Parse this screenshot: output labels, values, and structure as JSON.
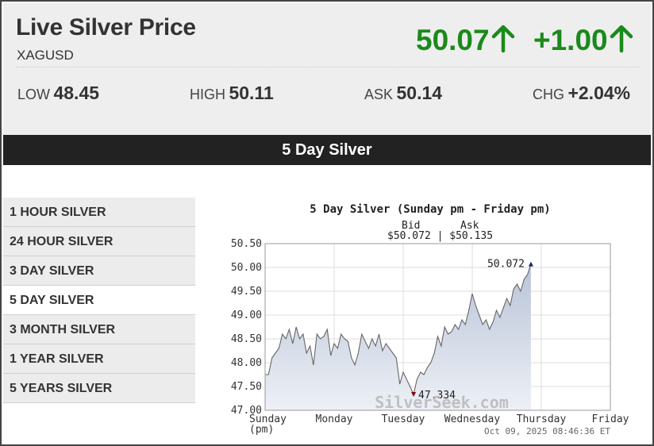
{
  "header": {
    "title": "Live Silver Price",
    "symbol": "XAGUSD",
    "price": "50.07",
    "change": "+1.00",
    "up_color": "#1a8a1a",
    "arrow_icon": "arrow-up-icon"
  },
  "stats": {
    "low_label": "LOW",
    "low_value": "48.45",
    "high_label": "HIGH",
    "high_value": "50.11",
    "ask_label": "ASK",
    "ask_value": "50.14",
    "chg_label": "CHG",
    "chg_value": "+2.04%"
  },
  "section_title": "5 Day Silver",
  "sidebar": {
    "items": [
      {
        "label": "1 HOUR SILVER",
        "active": false
      },
      {
        "label": "24 HOUR SILVER",
        "active": false
      },
      {
        "label": "3 DAY SILVER",
        "active": false
      },
      {
        "label": "5 DAY SILVER",
        "active": true
      },
      {
        "label": "3 MONTH SILVER",
        "active": false
      },
      {
        "label": "1 YEAR SILVER",
        "active": false
      },
      {
        "label": "5 YEARS SILVER",
        "active": false
      }
    ]
  },
  "chart": {
    "title": "5 Day Silver  (Sunday pm - Friday pm)",
    "bid_label": "Bid",
    "ask_label": "Ask",
    "bid_ask_values": "$50.072 | $50.135",
    "watermark": "SilverSeek.com",
    "timestamp": "Oct 09, 2025  08:46:36 ET"
  },
  "chart_data": {
    "type": "area",
    "title": "5 Day Silver  (Sunday pm - Friday pm)",
    "xlabel": "",
    "ylabel": "",
    "ylim": [
      47.0,
      50.5
    ],
    "y_ticks": [
      50.5,
      50.0,
      49.5,
      49.0,
      48.5,
      48.0,
      47.5,
      47.0
    ],
    "x_ticks": [
      "Sunday\n(pm)",
      "Monday",
      "Tuesday",
      "Wednesday",
      "Thursday",
      "Friday"
    ],
    "grid": true,
    "annotations": [
      {
        "label": "50.072",
        "x": 3.85,
        "y": 50.072,
        "kind": "high"
      },
      {
        "label": "47.334",
        "x": 2.15,
        "y": 47.334,
        "kind": "low"
      }
    ],
    "series": [
      {
        "x": [
          0.0,
          0.05,
          0.1,
          0.15,
          0.2,
          0.25,
          0.3,
          0.35,
          0.4,
          0.45,
          0.5,
          0.55,
          0.6,
          0.65,
          0.7,
          0.75,
          0.8,
          0.85,
          0.9,
          0.95,
          1.0,
          1.05,
          1.1,
          1.15,
          1.2,
          1.25,
          1.3,
          1.35,
          1.4,
          1.45,
          1.5,
          1.55,
          1.6,
          1.65,
          1.7,
          1.75,
          1.8,
          1.85,
          1.9,
          1.95,
          2.0,
          2.05,
          2.1,
          2.15,
          2.2,
          2.25,
          2.3,
          2.35,
          2.4,
          2.45,
          2.5,
          2.55,
          2.6,
          2.65,
          2.7,
          2.75,
          2.8,
          2.85,
          2.9,
          2.95,
          3.0,
          3.05,
          3.1,
          3.15,
          3.2,
          3.25,
          3.3,
          3.35,
          3.4,
          3.45,
          3.5,
          3.55,
          3.6,
          3.65,
          3.7,
          3.75,
          3.8,
          3.85
        ],
        "y": [
          47.75,
          47.75,
          48.1,
          48.2,
          48.3,
          48.6,
          48.5,
          48.7,
          48.4,
          48.75,
          48.5,
          48.6,
          48.2,
          48.35,
          47.95,
          48.6,
          48.5,
          48.55,
          48.7,
          48.15,
          48.4,
          48.3,
          48.6,
          48.5,
          48.45,
          48.1,
          47.95,
          48.2,
          48.6,
          48.45,
          48.3,
          48.5,
          48.35,
          48.6,
          48.25,
          48.4,
          48.3,
          48.2,
          48.1,
          47.55,
          47.8,
          47.65,
          47.5,
          47.334,
          47.65,
          47.8,
          47.75,
          47.9,
          48.0,
          48.2,
          48.55,
          48.35,
          48.75,
          48.6,
          48.65,
          48.8,
          48.7,
          48.9,
          48.8,
          49.1,
          49.45,
          49.2,
          49.0,
          48.8,
          48.9,
          48.7,
          48.85,
          49.1,
          48.95,
          49.15,
          49.35,
          49.2,
          49.55,
          49.65,
          49.5,
          49.75,
          49.85,
          50.072
        ]
      }
    ]
  }
}
